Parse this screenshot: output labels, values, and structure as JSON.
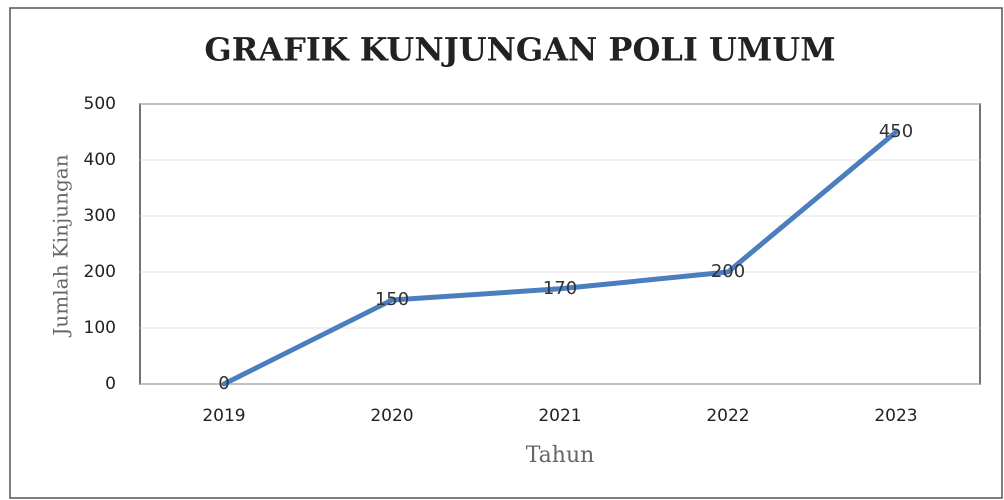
{
  "chart_data": {
    "type": "line",
    "title": "GRAFIK KUNJUNGAN POLI UMUM",
    "y_label": "Jumlah Kinjungan",
    "x_label": "Tahun",
    "categories": [
      "2019",
      "2020",
      "2021",
      "2022",
      "2023"
    ],
    "values": [
      0,
      150,
      170,
      200,
      450
    ],
    "color": "#4a7ebf",
    "ylim": [
      0,
      500
    ],
    "yticks": [
      0,
      100,
      200,
      300,
      400,
      500
    ],
    "grid": true
  }
}
